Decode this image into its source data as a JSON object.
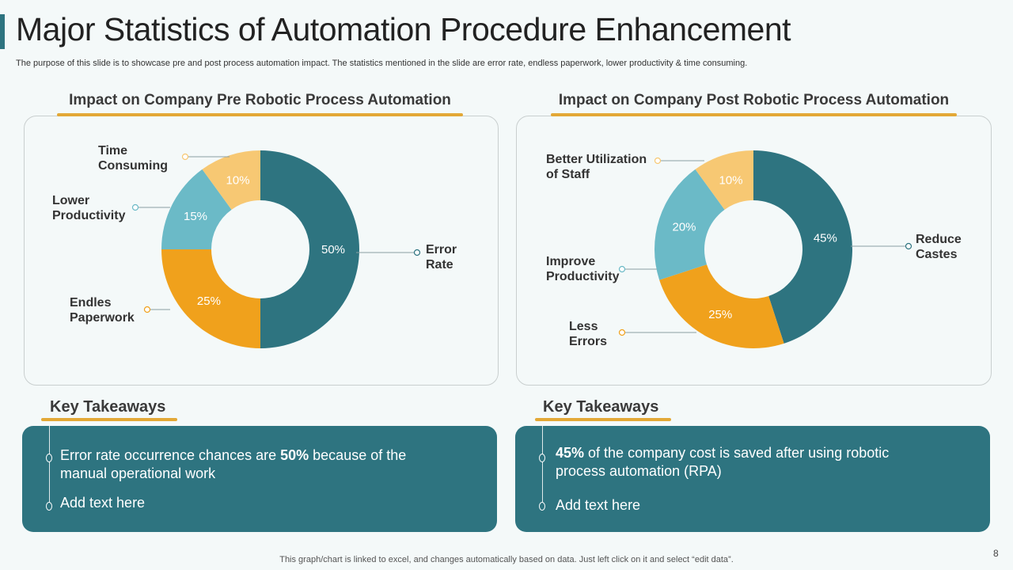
{
  "title": "Major Statistics of Automation Procedure Enhancement",
  "subtitle": "The purpose of this slide is to showcase pre and post process automation impact. The statistics mentioned in the slide are error rate, endless paperwork, lower productivity & time consuming.",
  "colors": {
    "teal": "#2e7480",
    "orange": "#f0a11c",
    "light_blue": "#6bbac7",
    "light_orange": "#f7c873",
    "accent": "#e3a836"
  },
  "chart_data": [
    {
      "type": "pie",
      "donut": true,
      "title": "Impact on Company Pre Robotic Process Automation",
      "slices": [
        {
          "label": "Error Rate",
          "value": 50,
          "display": "50%",
          "color": "#2e7480"
        },
        {
          "label": "Endles Paperwork",
          "value": 25,
          "display": "25%",
          "color": "#f0a11c"
        },
        {
          "label": "Lower Productivity",
          "value": 15,
          "display": "15%",
          "color": "#6bbac7"
        },
        {
          "label": "Time Consuming",
          "value": 10,
          "display": "10%",
          "color": "#f7c873"
        }
      ]
    },
    {
      "type": "pie",
      "donut": true,
      "title": "Impact on Company Post Robotic Process Automation",
      "slices": [
        {
          "label": "Reduce Castes",
          "value": 45,
          "display": "45%",
          "color": "#2e7480"
        },
        {
          "label": "Less Errors",
          "value": 25,
          "display": "25%",
          "color": "#f0a11c"
        },
        {
          "label": "Improve Productivity",
          "value": 20,
          "display": "20%",
          "color": "#6bbac7"
        },
        {
          "label": "Better Utilization of Staff",
          "value": 10,
          "display": "10%",
          "color": "#f7c873"
        }
      ]
    }
  ],
  "callouts": {
    "pre": [
      {
        "l1": "Error",
        "l2": "Rate"
      },
      {
        "l1": "Endles",
        "l2": "Paperwork"
      },
      {
        "l1": "Lower",
        "l2": "Productivity"
      },
      {
        "l1": "Time",
        "l2": "Consuming"
      }
    ],
    "post": [
      {
        "l1": "Reduce",
        "l2": "Castes"
      },
      {
        "l1": "Less",
        "l2": "Errors"
      },
      {
        "l1": "Improve",
        "l2": "Productivity"
      },
      {
        "l1": "Better Utilization",
        "l2": "of Staff"
      }
    ]
  },
  "takeaways": [
    {
      "heading": "Key Takeaways",
      "p1_pre": "Error rate occurrence chances are ",
      "p1_bold": "50%",
      "p1_post": " because of the manual operational work",
      "p2": "Add text here"
    },
    {
      "heading": "Key Takeaways",
      "p1_pre": "",
      "p1_bold": "45%",
      "p1_post": " of the company cost is saved after using robotic process automation (RPA)",
      "p2": "Add text here"
    }
  ],
  "footer": "This graph/chart is linked to excel, and changes automatically based on data. Just left click on it and select “edit data”.",
  "page_number": "8"
}
